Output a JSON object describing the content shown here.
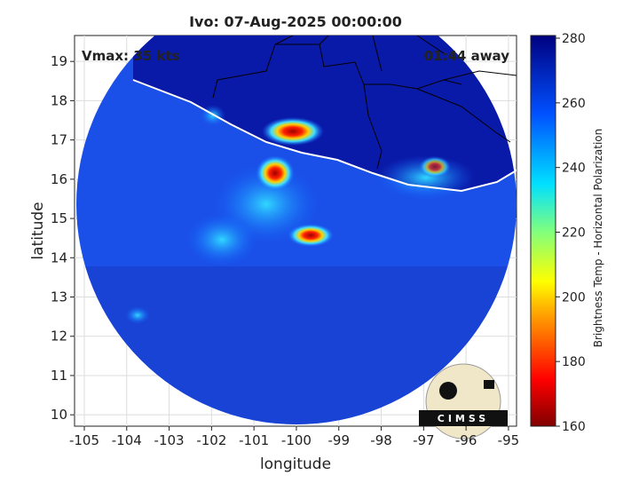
{
  "map": {
    "title": "Ivo: 07-Aug-2025 00:00:00",
    "annotations": {
      "left": "Vmax: 35 kts",
      "right": "01:44 away"
    },
    "xlabel": "longitude",
    "ylabel": "latitude",
    "xlim": [
      -105.23,
      -94.81
    ],
    "ylim": [
      9.71,
      19.66
    ],
    "xticks": [
      -105,
      -104,
      -103,
      -102,
      -101,
      -100,
      -99,
      -98,
      -97,
      -96,
      -95
    ],
    "yticks": [
      10,
      11,
      12,
      13,
      14,
      15,
      16,
      17,
      18,
      19
    ],
    "colorbar": {
      "label": "Brightness Temp - Horizontal Polarization",
      "lim": [
        160,
        280
      ],
      "ticks": [
        160,
        180,
        200,
        220,
        240,
        260,
        280
      ]
    },
    "logo": "CIMSS"
  }
}
